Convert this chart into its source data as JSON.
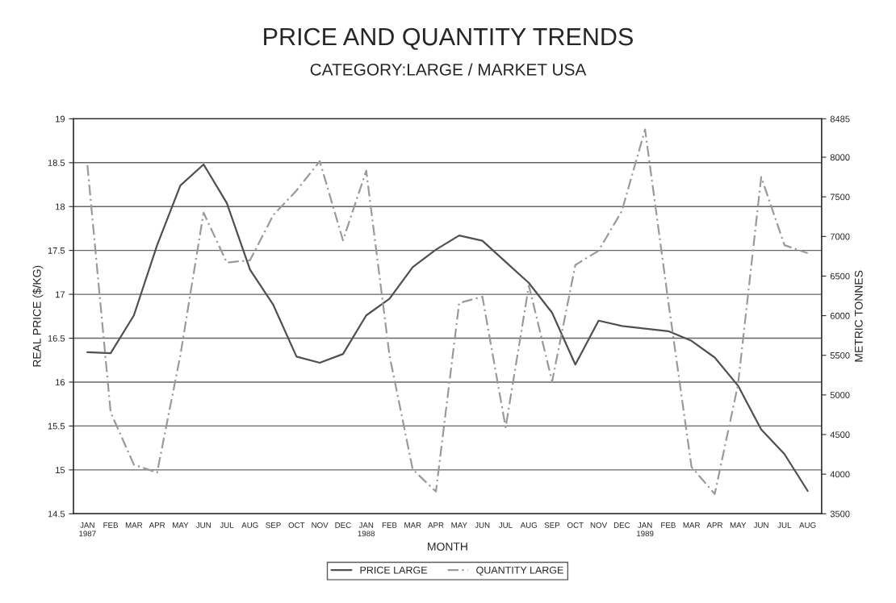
{
  "chart_data": {
    "type": "line",
    "title": "PRICE AND QUANTITY TRENDS",
    "subtitle": "CATEGORY:LARGE / MARKET USA",
    "xlabel": "MONTH",
    "ylabel": "REAL PRICE ($/KG)",
    "y2label": "METRIC TONNES",
    "categories": [
      "JAN\n1987",
      "FEB",
      "MAR",
      "APR",
      "MAY",
      "JUN",
      "JUL",
      "AUG",
      "SEP",
      "OCT",
      "NOV",
      "DEC",
      "JAN\n1988",
      "FEB",
      "MAR",
      "APR",
      "MAY",
      "JUN",
      "JUL",
      "AUG",
      "SEP",
      "OCT",
      "NOV",
      "DEC",
      "JAN\n1989",
      "FEB",
      "MAR",
      "APR",
      "MAY",
      "JUN",
      "JUL",
      "AUG"
    ],
    "series": [
      {
        "name": "PRICE LARGE",
        "color": "#505050",
        "line_style": "solid",
        "values": [
          16.34,
          16.33,
          16.76,
          17.56,
          18.24,
          18.48,
          18.04,
          17.28,
          16.88,
          16.29,
          16.22,
          16.32,
          16.76,
          16.95,
          17.31,
          17.51,
          17.67,
          17.61,
          17.37,
          17.13,
          16.79,
          16.2,
          16.7,
          16.64,
          16.61,
          16.58,
          16.47,
          16.28,
          15.96,
          15.46,
          15.18,
          14.76
        ]
      },
      {
        "name": "QUANTITY LARGE",
        "color": "#9a9a9a",
        "line_style": "dashed",
        "axis": "y2",
        "values": [
          7900,
          4780,
          4120,
          4020,
          5500,
          7300,
          6670,
          6700,
          7270,
          7580,
          7950,
          6950,
          7830,
          5500,
          4060,
          3780,
          6160,
          6240,
          4590,
          6380,
          5170,
          6640,
          6820,
          7320,
          8350,
          6180,
          4090,
          3750,
          5130,
          7750,
          6890,
          6790
        ]
      }
    ],
    "ylim": [
      14.5,
      19
    ],
    "yticks": [
      14.5,
      15,
      15.5,
      16,
      16.5,
      17,
      17.5,
      18,
      18.5,
      19
    ],
    "y2lim": [
      3500,
      8485
    ],
    "y2ticks": [
      3500,
      4000,
      4500,
      5000,
      5500,
      6000,
      6500,
      7000,
      7500,
      8000,
      8485
    ],
    "grid": "y",
    "legend": "bottom",
    "marker": "none"
  }
}
